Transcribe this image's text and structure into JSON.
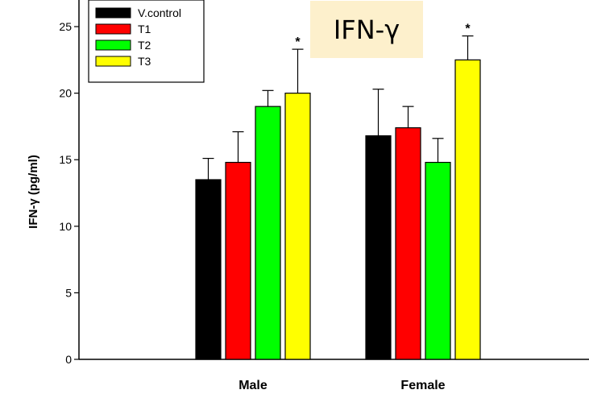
{
  "colors": {
    "V.control": "#000000",
    "T1": "#ff0000",
    "T2": "#00ff00",
    "T3": "#ffff00",
    "title_background": "#fdf0cc"
  },
  "chart_data": {
    "type": "bar",
    "title": "IFN-γ",
    "ylabel": "IFN-γ (pg/ml)",
    "xlabel": "",
    "categories": [
      "Male",
      "Female"
    ],
    "ylim": [
      0,
      27
    ],
    "yticks": [
      0,
      5,
      10,
      15,
      20,
      25
    ],
    "legend": {
      "placement": "top-left",
      "entries": [
        "V.control",
        "T1",
        "T2",
        "T3"
      ]
    },
    "series": [
      {
        "name": "V.control",
        "values": [
          13.5,
          16.8
        ],
        "errors": [
          1.6,
          3.5
        ]
      },
      {
        "name": "T1",
        "values": [
          14.8,
          17.4
        ],
        "errors": [
          2.3,
          1.6
        ]
      },
      {
        "name": "T2",
        "values": [
          19.0,
          14.8
        ],
        "errors": [
          1.2,
          1.8
        ]
      },
      {
        "name": "T3",
        "values": [
          20.0,
          22.5
        ],
        "errors": [
          3.3,
          1.8
        ]
      }
    ],
    "annotations": [
      {
        "series": "T3",
        "category": "Male",
        "text": "*"
      },
      {
        "series": "T3",
        "category": "Female",
        "text": "*"
      }
    ],
    "grid": false
  }
}
